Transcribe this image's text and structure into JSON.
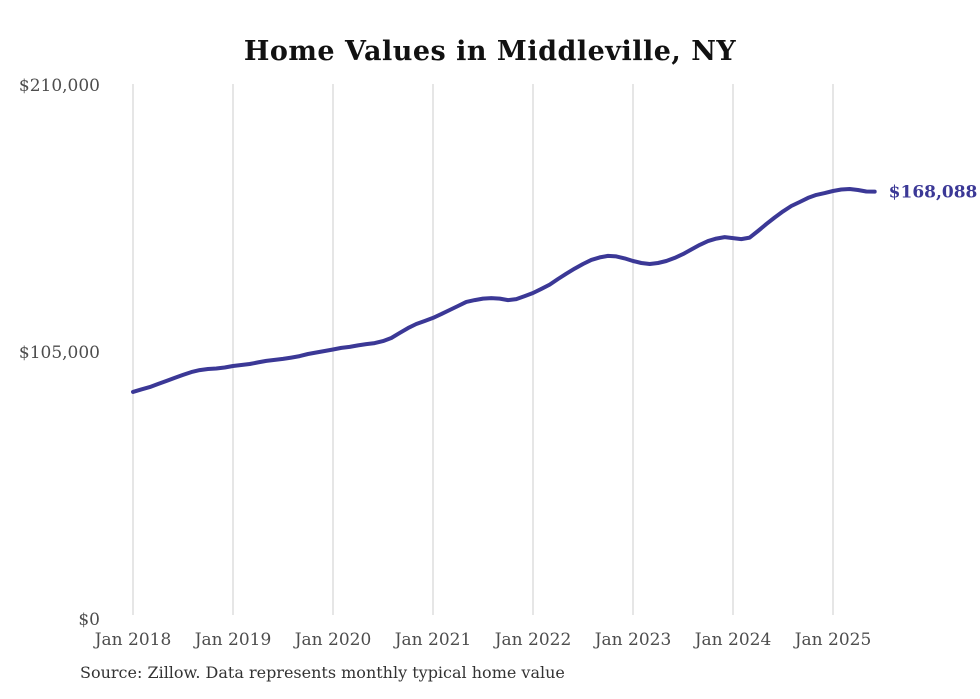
{
  "page": {
    "title": "Home Values in Middleville, NY",
    "source_note": "Source: Zillow. Data represents monthly typical home value"
  },
  "chart_data": {
    "type": "line",
    "title": "Home Values in Middleville, NY",
    "series_name": "Monthly typical home value",
    "x": [
      "2018-01",
      "2018-02",
      "2018-03",
      "2018-04",
      "2018-05",
      "2018-06",
      "2018-07",
      "2018-08",
      "2018-09",
      "2018-10",
      "2018-11",
      "2018-12",
      "2019-01",
      "2019-02",
      "2019-03",
      "2019-04",
      "2019-05",
      "2019-06",
      "2019-07",
      "2019-08",
      "2019-09",
      "2019-10",
      "2019-11",
      "2019-12",
      "2020-01",
      "2020-02",
      "2020-03",
      "2020-04",
      "2020-05",
      "2020-06",
      "2020-07",
      "2020-08",
      "2020-09",
      "2020-10",
      "2020-11",
      "2020-12",
      "2021-01",
      "2021-02",
      "2021-03",
      "2021-04",
      "2021-05",
      "2021-06",
      "2021-07",
      "2021-08",
      "2021-09",
      "2021-10",
      "2021-11",
      "2021-12",
      "2022-01",
      "2022-02",
      "2022-03",
      "2022-04",
      "2022-05",
      "2022-06",
      "2022-07",
      "2022-08",
      "2022-09",
      "2022-10",
      "2022-11",
      "2022-12",
      "2023-01",
      "2023-02",
      "2023-03",
      "2023-04",
      "2023-05",
      "2023-06",
      "2023-07",
      "2023-08",
      "2023-09",
      "2023-10",
      "2023-11",
      "2023-12",
      "2024-01",
      "2024-02",
      "2024-03",
      "2024-04",
      "2024-05",
      "2024-06",
      "2024-07",
      "2024-08",
      "2024-09",
      "2024-10",
      "2024-11",
      "2024-12",
      "2025-01",
      "2025-02",
      "2025-03",
      "2025-04",
      "2025-05",
      "2025-06"
    ],
    "values": [
      89300,
      90300,
      91200,
      92400,
      93600,
      94800,
      96000,
      97100,
      97900,
      98300,
      98500,
      98900,
      99500,
      99900,
      100300,
      100900,
      101500,
      101900,
      102300,
      102800,
      103400,
      104200,
      104800,
      105400,
      106000,
      106600,
      107000,
      107600,
      108100,
      108500,
      109300,
      110500,
      112500,
      114400,
      116000,
      117200,
      118400,
      119900,
      121500,
      123100,
      124700,
      125400,
      126000,
      126200,
      126000,
      125400,
      125800,
      127000,
      128200,
      129800,
      131500,
      133700,
      135800,
      137800,
      139600,
      141200,
      142200,
      142800,
      142600,
      141800,
      140800,
      140000,
      139600,
      140000,
      140800,
      142000,
      143500,
      145300,
      147100,
      148600,
      149600,
      150200,
      149800,
      149400,
      150000,
      152600,
      155300,
      157900,
      160300,
      162400,
      164000,
      165600,
      166800,
      167500,
      168300,
      168900,
      169100,
      168700,
      168100,
      168088
    ],
    "end_value": 168088,
    "end_label": "$168,088",
    "ylim": [
      0,
      210000
    ],
    "yticks": [
      {
        "value": 210000,
        "label": "$210,000"
      },
      {
        "value": 105000,
        "label": "$105,000"
      },
      {
        "value": 0,
        "label": "$0"
      }
    ],
    "xticks": [
      {
        "month_index": 0,
        "label": "Jan 2018"
      },
      {
        "month_index": 12,
        "label": "Jan 2019"
      },
      {
        "month_index": 24,
        "label": "Jan 2020"
      },
      {
        "month_index": 36,
        "label": "Jan 2021"
      },
      {
        "month_index": 48,
        "label": "Jan 2022"
      },
      {
        "month_index": 60,
        "label": "Jan 2023"
      },
      {
        "month_index": 72,
        "label": "Jan 2024"
      },
      {
        "month_index": 84,
        "label": "Jan 2025"
      }
    ],
    "grid": "vertical-only",
    "legend": "none",
    "colors": {
      "line": "#3b3896",
      "grid": "#cccccc",
      "tick_label": "#4d4d4d",
      "title": "#111111",
      "source": "#333333",
      "background": "#ffffff"
    },
    "source": "Source: Zillow. Data represents monthly typical home value"
  }
}
